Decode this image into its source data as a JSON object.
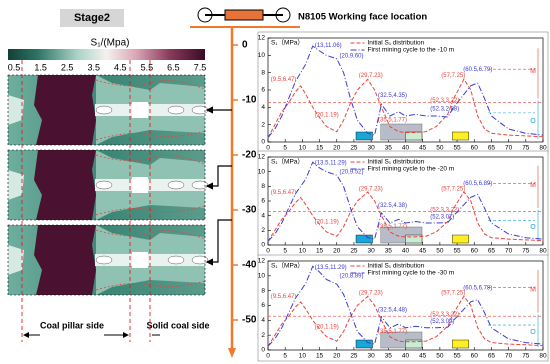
{
  "header": {
    "stage": "Stage2",
    "working_face": "N8105 Working face location"
  },
  "colorbar": {
    "title": "S₁/(Mpa)",
    "ticks": [
      0.5,
      1.5,
      2.5,
      3.5,
      4.5,
      5.5,
      6.5,
      7.5
    ]
  },
  "depth_axis": {
    "ticks": [
      0,
      -10,
      -20,
      -30,
      -40,
      -50
    ],
    "color": "#f07a2a"
  },
  "bottom_labels": [
    "Coal pillar side",
    "Solid coal side"
  ],
  "chart_data": [
    {
      "type": "line",
      "ylabel": "S₁（MPa）",
      "x": [
        0,
        2,
        4,
        6,
        8,
        9.5,
        11,
        13,
        15,
        17,
        20,
        22,
        24,
        26,
        29,
        31,
        33,
        35.5,
        38,
        40,
        43,
        46,
        49,
        52.3,
        54,
        57,
        59,
        61,
        63,
        65,
        70,
        75,
        80
      ],
      "xlim": [
        0,
        80
      ],
      "xticks": [
        0,
        5,
        10,
        15,
        20,
        25,
        30,
        35,
        40,
        45,
        50,
        55,
        60,
        65,
        70,
        75,
        80
      ],
      "ylim": [
        0,
        12
      ],
      "yticks": [
        0,
        2,
        4,
        6,
        8,
        10,
        12
      ],
      "series": [
        {
          "name": "Initial S₁ distribution",
          "color": "#e8453c",
          "values": [
            0.5,
            2,
            3.5,
            4.5,
            5.8,
            6.47,
            5.5,
            4,
            2.8,
            1.8,
            1.19,
            2.5,
            4.5,
            6,
            7.23,
            6,
            4,
            1.77,
            1.2,
            1.1,
            1.1,
            1.2,
            1.8,
            3.22,
            5,
            7.25,
            6,
            3,
            1.5,
            1,
            0.8,
            0.7,
            0.6
          ]
        },
        {
          "name": "First mining cycle to the -10 m",
          "color": "#3b3bd6",
          "values": [
            0.5,
            1.5,
            3,
            5,
            7,
            8,
            9,
            11.06,
            10.5,
            10,
            9.6,
            8,
            5,
            2.5,
            1,
            0.8,
            4.35,
            3,
            3.5,
            3,
            3.2,
            3,
            3,
            2.88,
            4,
            5.5,
            6.5,
            6.79,
            5,
            3,
            1.5,
            1,
            0.8
          ]
        }
      ],
      "annotations": [
        "(13,11.06)",
        "(20,9.60)",
        "(9.5,6.47)",
        "(20,1.19)",
        "(29,7.23)",
        "(32.5,4.35)",
        "(35.5,1.77)",
        "(52.3,2.88)",
        "(52.3,3.22)",
        "(57,7.25)",
        "(60.5,6.79)"
      ],
      "zone_labels": [
        "M",
        "O"
      ]
    },
    {
      "type": "line",
      "ylabel": "S₁（MPa）",
      "x": [
        0,
        2,
        4,
        6,
        8,
        9.5,
        11,
        13,
        15,
        17,
        20,
        22,
        24,
        26,
        29,
        31,
        33,
        35.5,
        38,
        40,
        43,
        46,
        49,
        52.3,
        54,
        57,
        59,
        61,
        63,
        65,
        70,
        75,
        80
      ],
      "xlim": [
        0,
        80
      ],
      "xticks": [
        0,
        5,
        10,
        15,
        20,
        25,
        30,
        35,
        40,
        45,
        50,
        55,
        60,
        65,
        70,
        75,
        80
      ],
      "ylim": [
        0,
        12
      ],
      "yticks": [
        0,
        2,
        4,
        6,
        8,
        10,
        12
      ],
      "series": [
        {
          "name": "Initial S₁ distribution",
          "color": "#e8453c",
          "values": [
            0.5,
            2,
            3.5,
            4.5,
            5.8,
            6.47,
            5.5,
            4,
            2.8,
            1.8,
            1.19,
            2.5,
            4.5,
            6,
            7.23,
            6,
            4,
            1.77,
            1.2,
            1.1,
            1.1,
            1.2,
            1.8,
            3.22,
            5,
            7.25,
            6,
            3,
            1.5,
            1,
            0.8,
            0.7,
            0.6
          ]
        },
        {
          "name": "First mining cycle to the -20 m",
          "color": "#3b3bd6",
          "values": [
            0.5,
            1.5,
            3,
            5,
            7,
            8,
            9,
            11.29,
            10.5,
            10,
            9.52,
            8,
            5,
            2.5,
            1,
            0.8,
            4.38,
            3,
            3.5,
            3,
            3.2,
            3,
            3,
            3.07,
            4,
            5.5,
            6.5,
            6.89,
            5,
            3,
            1.5,
            1,
            0.8
          ]
        }
      ],
      "annotations": [
        "(13.5,11.29)",
        "(20,9.52)",
        "(9.5,6.47)",
        "(20,1.19)",
        "(29,7.23)",
        "(32.5,4.38)",
        "(35.5,1.77)",
        "(52,3.07)",
        "(52.3,3.22)",
        "(57,7.25)",
        "(60.5,6.89)"
      ],
      "zone_labels": [
        "M",
        "O"
      ]
    },
    {
      "type": "line",
      "ylabel": "S₁（MPa）",
      "x": [
        0,
        2,
        4,
        6,
        8,
        9.5,
        11,
        13,
        15,
        17,
        20,
        22,
        24,
        26,
        29,
        31,
        33,
        35.5,
        38,
        40,
        43,
        46,
        49,
        52.3,
        54,
        57,
        59,
        61,
        63,
        65,
        70,
        75,
        80
      ],
      "xlim": [
        0,
        80
      ],
      "xticks": [
        0,
        5,
        10,
        15,
        20,
        25,
        30,
        35,
        40,
        45,
        50,
        55,
        60,
        65,
        70,
        75,
        80
      ],
      "ylim": [
        0,
        12
      ],
      "yticks": [
        0,
        2,
        4,
        6,
        8,
        10,
        12
      ],
      "series": [
        {
          "name": "Initial S₁ distribution",
          "color": "#e8453c",
          "values": [
            0.5,
            2,
            3.5,
            4.5,
            5.8,
            6.47,
            5.5,
            4,
            2.8,
            1.8,
            1.19,
            2.5,
            4.5,
            6,
            7.23,
            6,
            4,
            1.77,
            1.2,
            1.1,
            1.1,
            1.2,
            1.8,
            3.22,
            5,
            7.25,
            6,
            3,
            1.5,
            1,
            0.8,
            0.7,
            0.6
          ]
        },
        {
          "name": "First mining cycle to the -30 m",
          "color": "#3b3bd6",
          "values": [
            0.5,
            1.5,
            3,
            5,
            7,
            8,
            9,
            11.29,
            10.5,
            9.5,
            8.89,
            7.5,
            5,
            2.5,
            1,
            0.8,
            4.48,
            3,
            3.5,
            3,
            3.2,
            3,
            3,
            3.09,
            4,
            5.5,
            6.5,
            6.78,
            5,
            3,
            1.5,
            1,
            0.8
          ]
        }
      ],
      "annotations": [
        "(13.5,11.29)",
        "(20,8.89)",
        "(9.5,6.47)",
        "(20,1.19)",
        "(29,7.23)",
        "(32.5,4.48)",
        "(35.5,1.77)",
        "(52,3.09)",
        "(52.3,3.22)",
        "(57,7.25)",
        "(60.5,6.78)"
      ],
      "zone_labels": [
        "M",
        "O"
      ]
    }
  ]
}
